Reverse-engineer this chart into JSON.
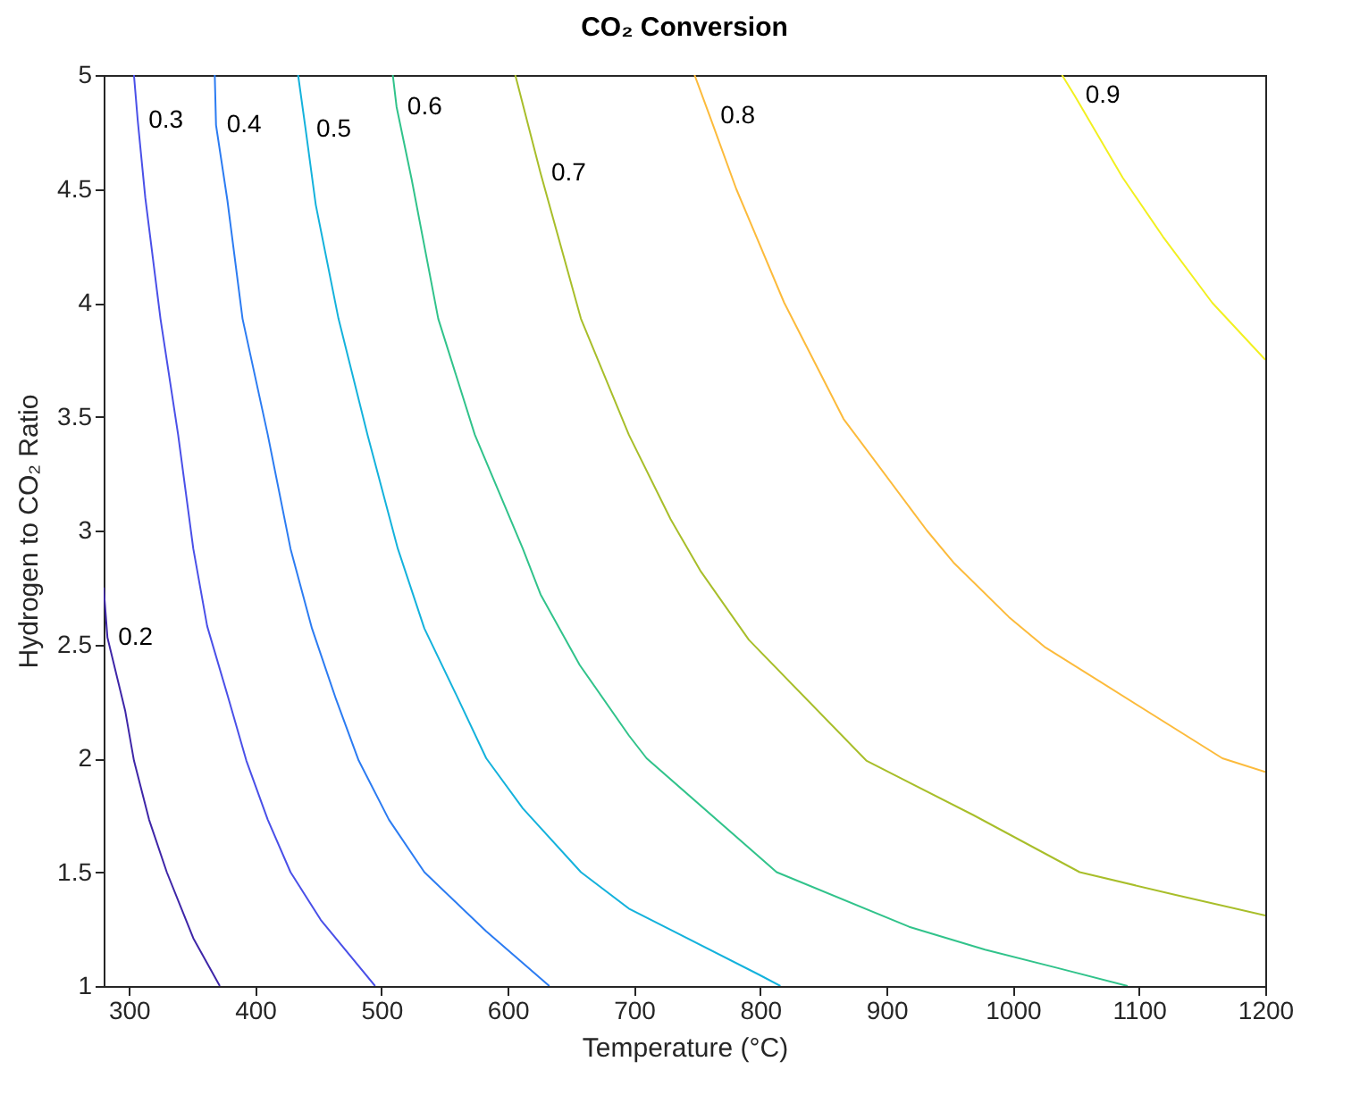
{
  "chart_data": {
    "type": "line",
    "title": "CO₂ Conversion",
    "xlabel": "Temperature (°C)",
    "ylabel": "Hydrogen to CO₂ Ratio",
    "xlim": [
      280,
      1200
    ],
    "xticks": [
      300,
      400,
      500,
      600,
      700,
      800,
      900,
      1000,
      1100,
      1200
    ],
    "ylim": [
      1,
      5
    ],
    "yticks": [
      1,
      1.5,
      2,
      2.5,
      3,
      3.5,
      4,
      4.5,
      5
    ],
    "grid": false,
    "legend": false,
    "marker": "none",
    "line_style": "solid",
    "series": [
      {
        "name": "0.2",
        "color": "#3e26a8",
        "x": [
          280,
          283,
          297,
          304,
          316,
          330,
          351,
          372
        ],
        "values": [
          2.75,
          2.53,
          2.21,
          1.99,
          1.73,
          1.5,
          1.21,
          1.0
        ]
      },
      {
        "name": "0.3",
        "color": "#4a50e8",
        "x": [
          304,
          307,
          313,
          325,
          339,
          351,
          362,
          379,
          393,
          410,
          428,
          452,
          495
        ],
        "values": [
          5,
          4.8,
          4.46,
          3.93,
          3.42,
          2.92,
          2.58,
          2.26,
          1.99,
          1.73,
          1.5,
          1.29,
          1.0
        ]
      },
      {
        "name": "0.4",
        "color": "#2c7cf2",
        "x": [
          368,
          369,
          378,
          390,
          410,
          428,
          445,
          464,
          482,
          506,
          534,
          583,
          633
        ],
        "values": [
          5,
          4.78,
          4.45,
          3.93,
          3.42,
          2.92,
          2.57,
          2.26,
          1.99,
          1.73,
          1.5,
          1.24,
          1.0
        ]
      },
      {
        "name": "0.5",
        "color": "#14b2dc",
        "x": [
          434,
          440,
          448,
          466,
          489,
          513,
          534,
          560,
          583,
          612,
          658,
          696,
          799,
          816
        ],
        "values": [
          5,
          4.76,
          4.43,
          3.93,
          3.42,
          2.92,
          2.57,
          2.27,
          2.0,
          1.78,
          1.5,
          1.34,
          1.05,
          1.0
        ]
      },
      {
        "name": "0.6",
        "color": "#31c38b",
        "x": [
          509,
          512,
          524,
          545,
          574,
          612,
          626,
          657,
          696,
          710,
          813,
          918,
          978,
          1035,
          1091
        ],
        "values": [
          5,
          4.86,
          4.54,
          3.93,
          3.42,
          2.92,
          2.72,
          2.41,
          2.1,
          2.0,
          1.5,
          1.26,
          1.16,
          1.08,
          1.0
        ]
      },
      {
        "name": "0.7",
        "color": "#a8be2a",
        "x": [
          606,
          626,
          658,
          696,
          729,
          753,
          791,
          884,
          969,
          1053,
          1129,
          1200
        ],
        "values": [
          5,
          4.57,
          3.93,
          3.42,
          3.05,
          2.82,
          2.52,
          1.99,
          1.75,
          1.5,
          1.4,
          1.31
        ]
      },
      {
        "name": "0.8",
        "color": "#fcbb3c",
        "x": [
          748,
          760,
          781,
          819,
          866,
          932,
          953,
          997,
          1025,
          1166,
          1200
        ],
        "values": [
          5,
          4.82,
          4.5,
          4.0,
          3.49,
          3.0,
          2.86,
          2.62,
          2.49,
          2.0,
          1.94
        ]
      },
      {
        "name": "0.9",
        "color": "#f2f020",
        "x": [
          1039,
          1049,
          1087,
          1119,
          1158,
          1200
        ],
        "values": [
          5,
          4.91,
          4.55,
          4.29,
          4.0,
          3.75
        ]
      }
    ]
  }
}
